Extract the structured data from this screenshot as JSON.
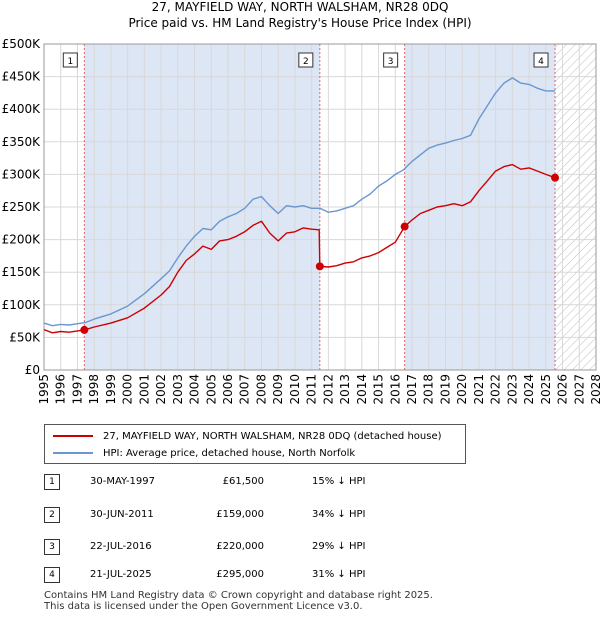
{
  "title_line1": "27, MAYFIELD WAY, NORTH WALSHAM, NR28 0DQ",
  "title_line2": "Price paid vs. HM Land Registry's House Price Index (HPI)",
  "colors": {
    "price_line": "#cc0000",
    "hpi_line": "#6a97cf",
    "shade": "#dde6f5",
    "hatch": "#bbbbbb",
    "vline": "#e06666"
  },
  "legend": {
    "price_label": "27, MAYFIELD WAY, NORTH WALSHAM, NR28 0DQ (detached house)",
    "hpi_label": "HPI: Average price, detached house, North Norfolk"
  },
  "sales": [
    {
      "num": "1",
      "date": "30-MAY-1997",
      "price": "£61,500",
      "diff": "15% ↓ HPI"
    },
    {
      "num": "2",
      "date": "30-JUN-2011",
      "price": "£159,000",
      "diff": "34% ↓ HPI"
    },
    {
      "num": "3",
      "date": "22-JUL-2016",
      "price": "£220,000",
      "diff": "29% ↓ HPI"
    },
    {
      "num": "4",
      "date": "21-JUL-2025",
      "price": "£295,000",
      "diff": "31% ↓ HPI"
    }
  ],
  "footer": {
    "line1": "Contains HM Land Registry data © Crown copyright and database right 2025.",
    "line2": "This data is licensed under the Open Government Licence v3.0."
  },
  "chart_data": {
    "type": "line",
    "xlim": [
      1995,
      2028
    ],
    "ylim": [
      0,
      500000
    ],
    "x_ticks": [
      "1995",
      "1996",
      "1997",
      "1998",
      "1999",
      "2000",
      "2001",
      "2002",
      "2003",
      "2004",
      "2005",
      "2006",
      "2007",
      "2008",
      "2009",
      "2010",
      "2011",
      "2012",
      "2013",
      "2014",
      "2015",
      "2016",
      "2017",
      "2018",
      "2019",
      "2020",
      "2021",
      "2022",
      "2023",
      "2024",
      "2025",
      "2026",
      "2027",
      "2028"
    ],
    "y_ticks": [
      {
        "value": 0,
        "label": "£0"
      },
      {
        "value": 50000,
        "label": "£50K"
      },
      {
        "value": 100000,
        "label": "£100K"
      },
      {
        "value": 150000,
        "label": "£150K"
      },
      {
        "value": 200000,
        "label": "£200K"
      },
      {
        "value": 250000,
        "label": "£250K"
      },
      {
        "value": 300000,
        "label": "£300K"
      },
      {
        "value": 350000,
        "label": "£350K"
      },
      {
        "value": 400000,
        "label": "£400K"
      },
      {
        "value": 450000,
        "label": "£450K"
      },
      {
        "value": 500000,
        "label": "£500K"
      }
    ],
    "shaded_ranges": [
      [
        1997.41,
        2011.49
      ],
      [
        2016.56,
        2025.55
      ]
    ],
    "hatch_from": 2025.55,
    "markers": [
      {
        "label": "1",
        "x": 1997.41,
        "y": 61500
      },
      {
        "label": "2",
        "x": 2011.49,
        "y": 159000
      },
      {
        "label": "3",
        "x": 2016.56,
        "y": 220000
      },
      {
        "label": "4",
        "x": 2025.55,
        "y": 295000
      }
    ],
    "series": [
      {
        "name": "27, MAYFIELD WAY, NORTH WALSHAM, NR28 0DQ (detached house)",
        "x": [
          1995,
          1995.5,
          1996,
          1996.5,
          1997,
          1997.41,
          1998,
          1999,
          2000,
          2001,
          2002,
          2002.5,
          2003,
          2003.5,
          2004,
          2004.5,
          2005,
          2005.5,
          2006,
          2006.5,
          2007,
          2007.5,
          2008,
          2008.5,
          2009,
          2009.5,
          2010,
          2010.5,
          2011,
          2011.45,
          2011.49,
          2012,
          2012.5,
          2013,
          2013.5,
          2014,
          2014.5,
          2015,
          2015.5,
          2016,
          2016.56,
          2017,
          2017.5,
          2018,
          2018.5,
          2019,
          2019.5,
          2020,
          2020.5,
          2021,
          2021.5,
          2022,
          2022.5,
          2023,
          2023.5,
          2024,
          2024.5,
          2025,
          2025.55
        ],
        "y": [
          62000,
          57000,
          59000,
          58000,
          60000,
          61500,
          66000,
          72000,
          80000,
          95000,
          115000,
          128000,
          150000,
          168000,
          178000,
          190000,
          185000,
          198000,
          200000,
          205000,
          212000,
          222000,
          228000,
          210000,
          198000,
          210000,
          212000,
          218000,
          216000,
          215000,
          159000,
          158000,
          160000,
          164000,
          166000,
          172000,
          175000,
          180000,
          188000,
          196000,
          220000,
          230000,
          240000,
          245000,
          250000,
          252000,
          255000,
          252000,
          258000,
          275000,
          290000,
          305000,
          312000,
          315000,
          308000,
          310000,
          305000,
          300000,
          295000
        ]
      },
      {
        "name": "HPI: Average price, detached house, North Norfolk",
        "x": [
          1995,
          1995.5,
          1996,
          1996.5,
          1997,
          1997.5,
          1998,
          1999,
          2000,
          2001,
          2002,
          2002.5,
          2003,
          2003.5,
          2004,
          2004.5,
          2005,
          2005.5,
          2006,
          2006.5,
          2007,
          2007.5,
          2008,
          2008.5,
          2009,
          2009.5,
          2010,
          2010.5,
          2011,
          2011.5,
          2012,
          2012.5,
          2013,
          2013.5,
          2014,
          2014.5,
          2015,
          2015.5,
          2016,
          2016.5,
          2017,
          2017.5,
          2018,
          2018.5,
          2019,
          2019.5,
          2020,
          2020.5,
          2021,
          2021.5,
          2022,
          2022.5,
          2023,
          2023.5,
          2024,
          2024.5,
          2025,
          2025.55
        ],
        "y": [
          72000,
          68000,
          70000,
          69000,
          71000,
          73000,
          78000,
          86000,
          98000,
          117000,
          140000,
          152000,
          172000,
          190000,
          205000,
          217000,
          215000,
          228000,
          235000,
          240000,
          248000,
          262000,
          266000,
          252000,
          240000,
          252000,
          250000,
          252000,
          248000,
          248000,
          242000,
          244000,
          248000,
          252000,
          262000,
          270000,
          282000,
          290000,
          300000,
          307000,
          320000,
          330000,
          340000,
          345000,
          348000,
          352000,
          355000,
          360000,
          385000,
          405000,
          425000,
          440000,
          448000,
          440000,
          438000,
          432000,
          428000,
          428000
        ]
      }
    ]
  }
}
